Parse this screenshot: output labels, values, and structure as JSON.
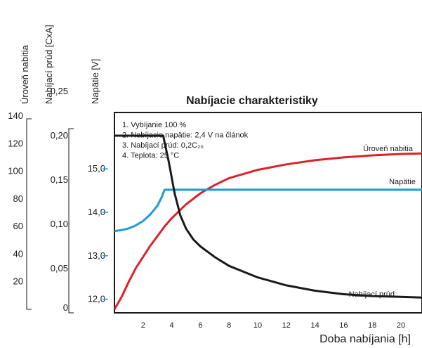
{
  "chart_data": {
    "type": "line",
    "title": "Nabíjacie charakteristiky",
    "xlabel": "Doba nabíjania [h]",
    "x_ticks": [
      "2",
      "4",
      "6",
      "8",
      "10",
      "12",
      "14",
      "16",
      "18",
      "20"
    ],
    "xlim": [
      0,
      24
    ],
    "axes": [
      {
        "label": "Úroveň nabitia",
        "ticks": [
          "140",
          "120",
          "100",
          "80",
          "60",
          "40",
          "20"
        ],
        "ylim": [
          0,
          140
        ]
      },
      {
        "label": "Nabíjací prúd [CxA]",
        "ticks": [
          "0,25",
          "0,20",
          "0,15",
          "0,10",
          "0,05",
          "0"
        ],
        "ylim": [
          0,
          0.3
        ]
      },
      {
        "label": "Napätie [V]",
        "ticks": [
          "15,0",
          "14,0",
          "13,0",
          "12,0"
        ],
        "ylim": [
          11.6,
          15.6
        ]
      }
    ],
    "notes": [
      "1. Vybíjanie 100 %",
      "2. Nabíjacie napätie: 2,4 V na článok",
      "3. Nabíjací prúd: 0,2C₂₀",
      "4. Teplota: 25 °C"
    ],
    "series": [
      {
        "name": "Úroveň nabitia",
        "axis": 0,
        "color": "#d9232a",
        "points": [
          [
            0,
            0
          ],
          [
            0.5,
            9
          ],
          [
            1,
            20
          ],
          [
            1.5,
            30
          ],
          [
            2,
            38
          ],
          [
            2.5,
            46
          ],
          [
            3,
            53
          ],
          [
            3.5,
            60
          ],
          [
            4,
            66
          ],
          [
            5,
            76
          ],
          [
            6,
            84
          ],
          [
            7,
            90
          ],
          [
            8,
            95
          ],
          [
            10,
            101
          ],
          [
            12,
            105
          ],
          [
            14,
            108
          ],
          [
            16,
            110
          ],
          [
            18,
            111.5
          ],
          [
            20,
            112.5
          ],
          [
            22,
            113
          ],
          [
            24,
            113.5
          ]
        ]
      },
      {
        "name": "Napätie",
        "axis": 2,
        "color": "#1f9ad6",
        "points": [
          [
            0,
            13.57
          ],
          [
            0.5,
            13.59
          ],
          [
            1,
            13.63
          ],
          [
            1.5,
            13.7
          ],
          [
            2,
            13.8
          ],
          [
            2.5,
            13.95
          ],
          [
            3,
            14.15
          ],
          [
            3.3,
            14.35
          ],
          [
            3.5,
            14.52
          ],
          [
            4,
            14.52
          ],
          [
            24,
            14.52
          ]
        ]
      },
      {
        "name": "Nabíjací prúd",
        "axis": 1,
        "color": "#1a1a1a",
        "points": [
          [
            0,
            0.2
          ],
          [
            3.4,
            0.2
          ],
          [
            3.8,
            0.17
          ],
          [
            4.2,
            0.135
          ],
          [
            4.6,
            0.11
          ],
          [
            5,
            0.095
          ],
          [
            5.5,
            0.083
          ],
          [
            6,
            0.075
          ],
          [
            7,
            0.063
          ],
          [
            8,
            0.053
          ],
          [
            10,
            0.04
          ],
          [
            12,
            0.031
          ],
          [
            14,
            0.025
          ],
          [
            16,
            0.021
          ],
          [
            18,
            0.019
          ],
          [
            20,
            0.018
          ],
          [
            22,
            0.017
          ],
          [
            24,
            0.017
          ]
        ]
      }
    ]
  }
}
